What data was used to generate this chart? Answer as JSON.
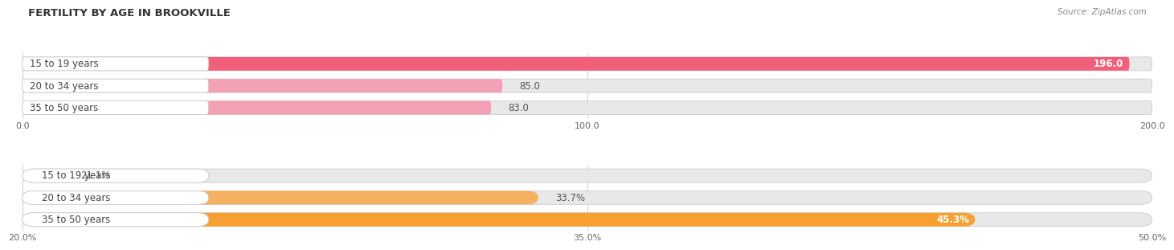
{
  "title": "FERTILITY BY AGE IN BROOKVILLE",
  "source": "Source: ZipAtlas.com",
  "top_bars": [
    {
      "label": "15 to 19 years",
      "value": 196.0,
      "color_bar": "#f0607a",
      "value_label": "196.0",
      "label_color": "white"
    },
    {
      "label": "20 to 34 years",
      "value": 85.0,
      "color_bar": "#f4a0b5",
      "value_label": "85.0",
      "label_color": "black"
    },
    {
      "label": "35 to 50 years",
      "value": 83.0,
      "color_bar": "#f4a0b5",
      "value_label": "83.0",
      "label_color": "black"
    }
  ],
  "top_axis": {
    "min": 0.0,
    "max": 200.0,
    "ticks": [
      0.0,
      100.0,
      200.0
    ]
  },
  "bottom_bars": [
    {
      "label": "15 to 19 years",
      "value": 21.1,
      "color_bar": "#f5c8a0",
      "value_label": "21.1%",
      "label_color": "black"
    },
    {
      "label": "20 to 34 years",
      "value": 33.7,
      "color_bar": "#f5b060",
      "value_label": "33.7%",
      "label_color": "black"
    },
    {
      "label": "35 to 50 years",
      "value": 45.3,
      "color_bar": "#f5a030",
      "value_label": "45.3%",
      "label_color": "white"
    }
  ],
  "bottom_axis": {
    "min": 20.0,
    "max": 50.0,
    "ticks": [
      20.0,
      35.0,
      50.0
    ],
    "tick_labels": [
      "20.0%",
      "35.0%",
      "50.0%"
    ]
  }
}
